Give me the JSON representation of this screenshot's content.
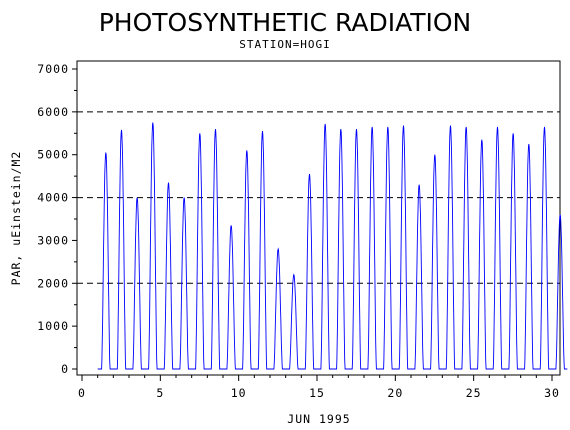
{
  "chart_data": {
    "type": "line",
    "title": "PHOTOSYNTHETIC RADIATION",
    "subtitle": "STATION=HOGI",
    "xlabel": "JUN 1995",
    "ylabel": "PAR, uEinstein/M2",
    "xlim": [
      0,
      30
    ],
    "ylim": [
      0,
      7000
    ],
    "x_ticks": [
      0,
      5,
      10,
      15,
      20,
      25,
      30
    ],
    "y_ticks": [
      0,
      1000,
      2000,
      3000,
      4000,
      5000,
      6000,
      7000
    ],
    "reference_lines_y": [
      2000,
      4000,
      6000
    ],
    "series_color": "#0000ff",
    "daily_peaks": [
      {
        "day": 1,
        "peak": 5050
      },
      {
        "day": 2,
        "peak": 5580
      },
      {
        "day": 3,
        "peak": 4000
      },
      {
        "day": 4,
        "peak": 5750
      },
      {
        "day": 5,
        "peak": 4350
      },
      {
        "day": 6,
        "peak": 4000
      },
      {
        "day": 7,
        "peak": 5500
      },
      {
        "day": 8,
        "peak": 5600
      },
      {
        "day": 9,
        "peak": 3350
      },
      {
        "day": 10,
        "peak": 5100
      },
      {
        "day": 11,
        "peak": 5550
      },
      {
        "day": 12,
        "peak": 2800
      },
      {
        "day": 13,
        "peak": 2200
      },
      {
        "day": 14,
        "peak": 4550
      },
      {
        "day": 15,
        "peak": 5720
      },
      {
        "day": 16,
        "peak": 5600
      },
      {
        "day": 17,
        "peak": 5600
      },
      {
        "day": 18,
        "peak": 5650
      },
      {
        "day": 19,
        "peak": 5650
      },
      {
        "day": 20,
        "peak": 5680
      },
      {
        "day": 21,
        "peak": 4300
      },
      {
        "day": 22,
        "peak": 5000
      },
      {
        "day": 23,
        "peak": 5680
      },
      {
        "day": 24,
        "peak": 5650
      },
      {
        "day": 25,
        "peak": 5350
      },
      {
        "day": 26,
        "peak": 5650
      },
      {
        "day": 27,
        "peak": 5500
      },
      {
        "day": 28,
        "peak": 5250
      },
      {
        "day": 29,
        "peak": 5650
      },
      {
        "day": 30,
        "peak": 3600
      }
    ]
  }
}
